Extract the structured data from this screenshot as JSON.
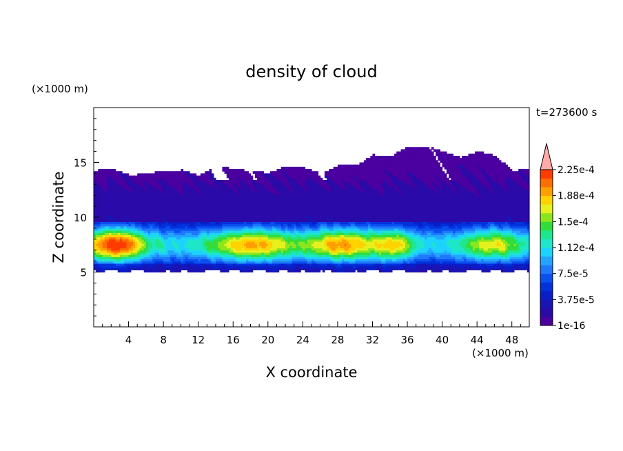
{
  "chart_data": {
    "type": "heatmap",
    "title": "density of cloud",
    "xlabel": "X coordinate",
    "ylabel": "Z coordinate",
    "x_unit": "(×1000 m)",
    "y_unit": "(×1000 m)",
    "time_label": "t=273600 s",
    "xlim": [
      0,
      50
    ],
    "ylim": [
      0,
      20
    ],
    "x_ticks": [
      4,
      8,
      12,
      16,
      20,
      24,
      28,
      32,
      36,
      40,
      44,
      48
    ],
    "y_ticks": [
      5,
      10,
      15
    ],
    "colorbar": {
      "tick_labels": [
        "1e-16",
        "3.75e-5",
        "7.5e-5",
        "1.12e-4",
        "1.5e-4",
        "1.88e-4",
        "2.25e-4"
      ],
      "levels": 18,
      "colors": [
        "#4b00a0",
        "#2a0aa8",
        "#1a14b4",
        "#0a1ec8",
        "#0032dc",
        "#0a50f0",
        "#1e78ff",
        "#23a5ff",
        "#1ed2ff",
        "#1ee6c8",
        "#1ee68c",
        "#32dc3c",
        "#8ce61e",
        "#e6f01e",
        "#ffd200",
        "#ffa000",
        "#ff6e00",
        "#ff3c00",
        "#ff1e1e"
      ],
      "over_color": "#ffaaaa"
    },
    "profile_note_values": {
      "cloud_base_z": 5,
      "cloud_top_z": [
        14,
        17.5
      ]
    }
  }
}
